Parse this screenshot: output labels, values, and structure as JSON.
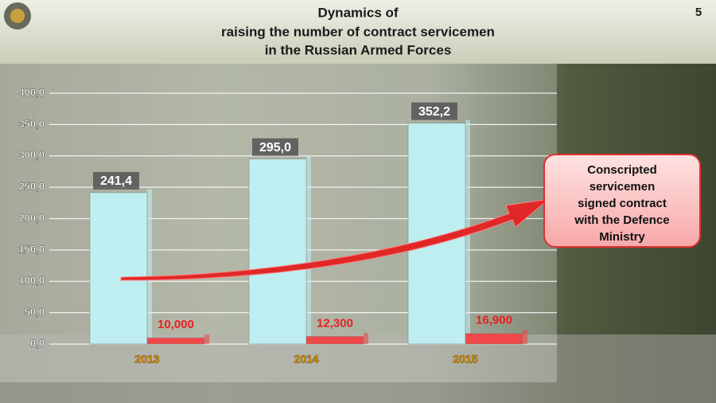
{
  "page": "5",
  "chart_data": {
    "type": "bar",
    "title": [
      "Dynamics of",
      "raising the number of contract servicemen",
      "in the Russian Armed Forces"
    ],
    "categories": [
      "2013",
      "2014",
      "2015"
    ],
    "series": [
      {
        "color": "#bfeef0",
        "values": [
          241.4,
          295.0,
          352.2
        ],
        "value_labels": [
          "241,4",
          "295,0",
          "352,2"
        ]
      },
      {
        "color": "#f04848",
        "values": [
          10,
          12.3,
          16.9
        ],
        "value_labels": [
          "10,000",
          "12,300",
          "16,900"
        ]
      }
    ],
    "ylim": [
      0,
      400
    ],
    "yticks": [
      {
        "value": 0,
        "label": "0,0"
      },
      {
        "value": 50,
        "label": "50,0"
      },
      {
        "value": 100,
        "label": "100,0"
      },
      {
        "value": 150,
        "label": "150,0"
      },
      {
        "value": 200,
        "label": "200,0"
      },
      {
        "value": 250,
        "label": "250,0"
      },
      {
        "value": 300,
        "label": "300,0"
      },
      {
        "value": 350,
        "label": "350,0"
      },
      {
        "value": 400,
        "label": "400,0"
      }
    ],
    "grid": true,
    "annotation": [
      "Conscripted",
      "servicemen",
      "signed contract",
      "with the Defence",
      "Ministry"
    ]
  }
}
